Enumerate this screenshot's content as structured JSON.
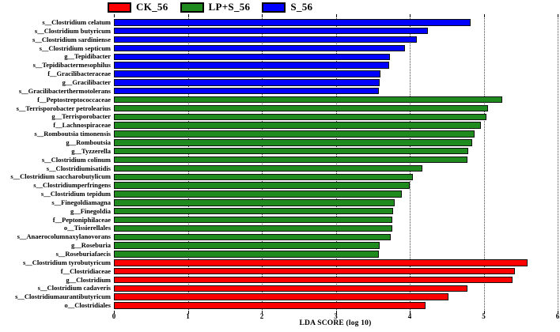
{
  "legend": [
    {
      "label": "CK_56",
      "color": "#FF0000"
    },
    {
      "label": "LP+S_56",
      "color": "#1F8B1F"
    },
    {
      "label": "S_56",
      "color": "#0000FF"
    }
  ],
  "chart_data": {
    "type": "bar",
    "orientation": "horizontal",
    "title": "",
    "xlabel": "LDA SCORE (log 10)",
    "ylabel": "",
    "xlim": [
      0,
      6
    ],
    "xticks": [
      0,
      1,
      2,
      3,
      4,
      5,
      6
    ],
    "grid": "vertical-dotted-at-integers",
    "legend_position": "top",
    "groups": {
      "CK_56": "#FF0000",
      "LP+S_56": "#1F8B1F",
      "S_56": "#0000FF"
    },
    "bars": [
      {
        "label": "s__Clostridium celatum",
        "group": "S_56",
        "value": 4.82
      },
      {
        "label": "s__Clostridium butyricum",
        "group": "S_56",
        "value": 4.25
      },
      {
        "label": "s__Clostridium sardiniense",
        "group": "S_56",
        "value": 4.1
      },
      {
        "label": "s__Clostridium septicum",
        "group": "S_56",
        "value": 3.94
      },
      {
        "label": "g__Tepidibacter",
        "group": "S_56",
        "value": 3.73
      },
      {
        "label": "s__Tepidibactermesophilus",
        "group": "S_56",
        "value": 3.72
      },
      {
        "label": "f__Gracilibacteraceae",
        "group": "S_56",
        "value": 3.6
      },
      {
        "label": "g__Gracilibacter",
        "group": "S_56",
        "value": 3.59
      },
      {
        "label": "s__Gracilibacterthermotolerans",
        "group": "S_56",
        "value": 3.58
      },
      {
        "label": "f__Peptostreptococcaceae",
        "group": "LP+S_56",
        "value": 5.25
      },
      {
        "label": "s__Terrisporobacter petrolearius",
        "group": "LP+S_56",
        "value": 5.06
      },
      {
        "label": "g__Terrisporobacter",
        "group": "LP+S_56",
        "value": 5.04
      },
      {
        "label": "f__Lachnospiraceae",
        "group": "LP+S_56",
        "value": 4.96
      },
      {
        "label": "s__Romboutsia timonensis",
        "group": "LP+S_56",
        "value": 4.88
      },
      {
        "label": "g__Romboutsia",
        "group": "LP+S_56",
        "value": 4.84
      },
      {
        "label": "g__Tyzzerella",
        "group": "LP+S_56",
        "value": 4.79
      },
      {
        "label": "s__Clostridium colinum",
        "group": "LP+S_56",
        "value": 4.78
      },
      {
        "label": "s__Clostridiumisatidis",
        "group": "LP+S_56",
        "value": 4.17
      },
      {
        "label": "s__Clostridium saccharobutylicum",
        "group": "LP+S_56",
        "value": 4.04
      },
      {
        "label": "s__Clostridiumperfringens",
        "group": "LP+S_56",
        "value": 4.0
      },
      {
        "label": "s__Clostridium tepidum",
        "group": "LP+S_56",
        "value": 3.89
      },
      {
        "label": "s__Finegoldiamagna",
        "group": "LP+S_56",
        "value": 3.8
      },
      {
        "label": "g__Finegoldia",
        "group": "LP+S_56",
        "value": 3.78
      },
      {
        "label": "f__Peptoniphilaceae",
        "group": "LP+S_56",
        "value": 3.77
      },
      {
        "label": "o__Tissierellales",
        "group": "LP+S_56",
        "value": 3.77
      },
      {
        "label": "s__Anaerocolumnaxylanovorans",
        "group": "LP+S_56",
        "value": 3.74
      },
      {
        "label": "g__Roseburia",
        "group": "LP+S_56",
        "value": 3.59
      },
      {
        "label": "s__Roseburiafaecis",
        "group": "LP+S_56",
        "value": 3.58
      },
      {
        "label": "s__Clostridium tyrobutyricum",
        "group": "CK_56",
        "value": 5.59
      },
      {
        "label": "f__Clostridiaceae",
        "group": "CK_56",
        "value": 5.42
      },
      {
        "label": "g__Clostridium",
        "group": "CK_56",
        "value": 5.39
      },
      {
        "label": "s__Clostridium cadaveris",
        "group": "CK_56",
        "value": 4.78
      },
      {
        "label": "s__Clostridiumaurantibutyricum",
        "group": "CK_56",
        "value": 4.52
      },
      {
        "label": "o__Clostridiales",
        "group": "CK_56",
        "value": 4.21
      }
    ]
  }
}
